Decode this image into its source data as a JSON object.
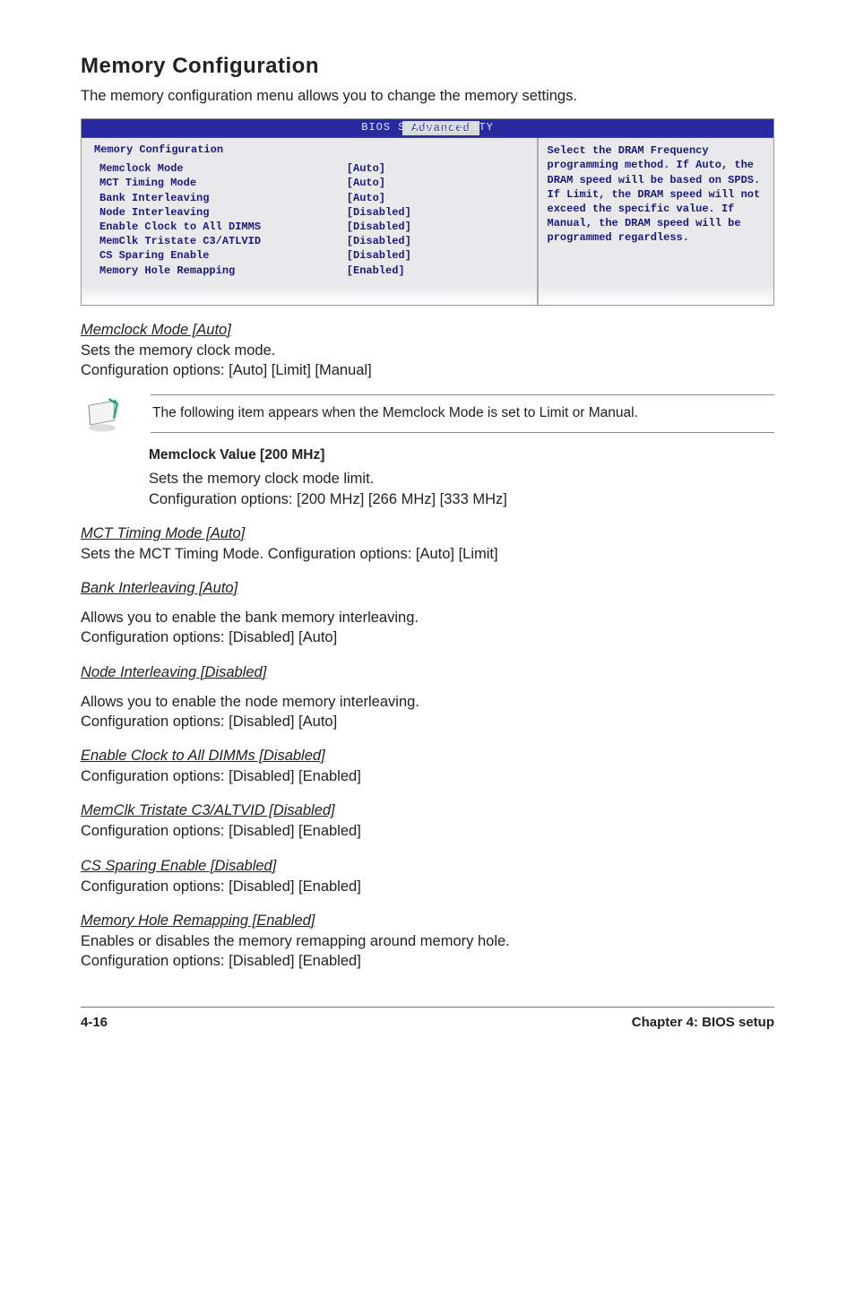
{
  "heading": "Memory Configuration",
  "intro": "The memory configuration menu allows you to change the memory settings.",
  "bios": {
    "titlebar": "BIOS SETUP UTILITY",
    "tab": "Advanced",
    "section_title": "Memory Configuration",
    "rows": [
      {
        "k": "Memclock Mode",
        "v": "[Auto]"
      },
      {
        "k": "MCT Timing Mode",
        "v": "[Auto]"
      },
      {
        "k": "Bank Interleaving",
        "v": "[Auto]"
      },
      {
        "k": "Node Interleaving",
        "v": "[Disabled]"
      },
      {
        "k": "Enable Clock to All DIMMS",
        "v": "[Disabled]"
      },
      {
        "k": "MemClk Tristate C3/ATLVID",
        "v": "[Disabled]"
      },
      {
        "k": "CS Sparing Enable",
        "v": "[Disabled]"
      },
      {
        "k": "Memory Hole Remapping",
        "v": "[Enabled]"
      }
    ],
    "help": "Select the DRAM Frequency programming method. If Auto, the DRAM speed will be based on SPDS. If Limit, the DRAM speed will not exceed the specific value. If Manual, the DRAM speed will be programmed regardless."
  },
  "sections": [
    {
      "title": "Memclock Mode [Auto]",
      "lines": [
        "Sets the memory clock mode.",
        "Configuration options: [Auto] [Limit] [Manual]"
      ]
    }
  ],
  "note": "The following item appears when the Memclock Mode is set to Limit or Manual.",
  "memclock_value_label": "Memclock Value [200 MHz]",
  "memclock_value_body": [
    "Sets the memory clock mode limit.",
    "Configuration options: [200 MHz] [266 MHz] [333 MHz]"
  ],
  "rest": [
    {
      "title": "MCT Timing Mode [Auto]",
      "lines": [
        "Sets the MCT Timing Mode. Configuration options: [Auto] [Limit]"
      ]
    },
    {
      "title": "Bank Interleaving [Auto]",
      "lines": [
        "Allows you to enable the bank memory interleaving.",
        "Configuration options: [Disabled] [Auto]"
      ],
      "gap": true
    },
    {
      "title": "Node Interleaving [Disabled]",
      "lines": [
        "Allows you to enable the node memory interleaving.",
        "Configuration options: [Disabled] [Auto]"
      ],
      "gap": true
    },
    {
      "title": "Enable Clock to All DIMMs [Disabled]",
      "lines": [
        "Configuration options: [Disabled] [Enabled]"
      ]
    },
    {
      "title": "MemClk Tristate C3/ALTVID [Disabled]",
      "lines": [
        "Configuration options: [Disabled] [Enabled]"
      ]
    },
    {
      "title": "CS Sparing Enable [Disabled]",
      "lines": [
        "Configuration options: [Disabled] [Enabled]"
      ]
    },
    {
      "title": "Memory Hole Remapping [Enabled]",
      "lines": [
        "Enables or disables the memory remapping around memory hole.",
        "Configuration options: [Disabled] [Enabled]"
      ]
    }
  ],
  "footer": {
    "left": "4-16",
    "right": "Chapter 4: BIOS setup"
  },
  "colors": {
    "bios_blue": "#2a2aa0",
    "bios_grey": "#e9e9ec",
    "bios_text": "#1a1a7a"
  }
}
